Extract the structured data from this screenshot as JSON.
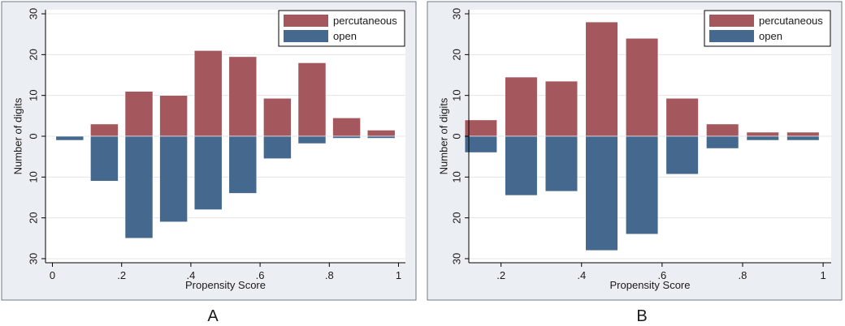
{
  "colors": {
    "percutaneous": "#a4585e",
    "open": "#45698e",
    "plot_bg": "#ffffff",
    "outer_bg": "#ebeff3",
    "gridline": "#e1e4e8",
    "panel_border": "#6f7a86"
  },
  "chart_data": [
    {
      "type": "bar",
      "panel_label": "A",
      "xlabel": "Propensity Score",
      "ylabel": "Number of digits",
      "xlim": [
        -0.02,
        1.02
      ],
      "ylim": [
        -31,
        31
      ],
      "xticks": [
        0,
        0.2,
        0.4,
        0.6,
        0.8,
        1
      ],
      "xtick_labels": [
        "0",
        ".2",
        ".4",
        ".6",
        ".8",
        "1"
      ],
      "yticks": [
        30,
        20,
        10,
        0,
        -10,
        -20,
        -30
      ],
      "ytick_labels": [
        "30",
        "20",
        "10",
        "0",
        "10",
        "20",
        "30"
      ],
      "bar_width": 0.08,
      "x": [
        0.05,
        0.15,
        0.25,
        0.35,
        0.45,
        0.55,
        0.65,
        0.75,
        0.85,
        0.95
      ],
      "legend_position": "top-right",
      "series": [
        {
          "name": "percutaneous",
          "values": [
            0,
            3,
            11,
            10,
            21,
            19.5,
            9.3,
            18,
            4.5,
            1.5
          ]
        },
        {
          "name": "open",
          "values": [
            -1,
            -11,
            -25,
            -21,
            -18,
            -14,
            -5.5,
            -1.8,
            -0.5,
            -0.5
          ]
        }
      ]
    },
    {
      "type": "bar",
      "panel_label": "B",
      "xlabel": "Propensity Score",
      "ylabel": "Number of digits",
      "xlim": [
        0.12,
        1.02
      ],
      "ylim": [
        -31,
        31
      ],
      "xticks": [
        0.2,
        0.4,
        0.6,
        0.8,
        1
      ],
      "xtick_labels": [
        ".2",
        ".4",
        ".6",
        ".8",
        "1"
      ],
      "yticks": [
        30,
        20,
        10,
        0,
        -10,
        -20,
        -30
      ],
      "ytick_labels": [
        "30",
        "20",
        "10",
        "0",
        "10",
        "20",
        "30"
      ],
      "bar_width": 0.08,
      "x": [
        0.15,
        0.25,
        0.35,
        0.45,
        0.55,
        0.65,
        0.75,
        0.85,
        0.95
      ],
      "legend_position": "top-right",
      "series": [
        {
          "name": "percutaneous",
          "values": [
            4,
            14.5,
            13.5,
            28,
            24,
            9.3,
            3,
            1,
            1
          ]
        },
        {
          "name": "open",
          "values": [
            -4,
            -14.5,
            -13.5,
            -28,
            -24,
            -9.3,
            -3,
            -1,
            -1
          ]
        }
      ]
    }
  ]
}
